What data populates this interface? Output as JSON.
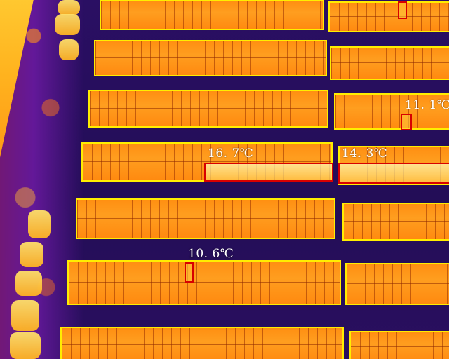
{
  "palette": {
    "panel_border": "#ffee00",
    "defect_box": "#d80000",
    "label_color": "#ffffff"
  },
  "annotations": [
    {
      "id": "hotspot-1",
      "temperature": "11. 1℃"
    },
    {
      "id": "hotspot-2",
      "temperature": "16. 7℃"
    },
    {
      "id": "hotspot-3",
      "temperature": "14. 3℃"
    },
    {
      "id": "hotspot-4",
      "temperature": "10. 6℃"
    }
  ]
}
